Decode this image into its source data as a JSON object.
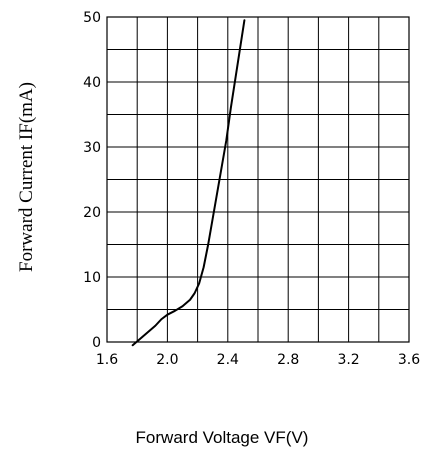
{
  "chart_data": {
    "type": "line",
    "xlabel": "Forward Voltage VF(V)",
    "ylabel": "Forward Current IF(mA)",
    "xlim": [
      1.6,
      3.6
    ],
    "ylim": [
      0,
      50
    ],
    "x_ticks": [
      "1.6",
      "2.0",
      "2.4",
      "2.8",
      "3.2",
      "3.6"
    ],
    "y_ticks": [
      "0",
      "10",
      "20",
      "30",
      "40",
      "50"
    ],
    "grid": true,
    "series": [
      {
        "x": [
          1.77,
          1.82,
          1.87,
          1.92,
          1.96,
          2.0,
          2.05,
          2.1,
          2.15,
          2.18,
          2.21,
          2.24,
          2.27,
          2.3,
          2.33,
          2.36,
          2.39,
          2.42,
          2.45,
          2.48,
          2.51
        ],
        "y": [
          -0.5,
          0.5,
          1.5,
          2.5,
          3.5,
          4.2,
          4.8,
          5.5,
          6.5,
          7.5,
          9,
          11.5,
          15,
          19,
          23,
          27,
          31,
          36,
          40.5,
          45,
          49.5
        ]
      }
    ]
  }
}
